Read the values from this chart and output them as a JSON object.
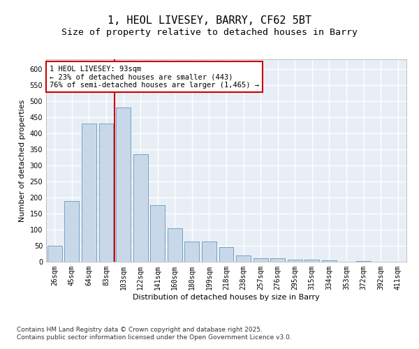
{
  "title_line1": "1, HEOL LIVESEY, BARRY, CF62 5BT",
  "title_line2": "Size of property relative to detached houses in Barry",
  "xlabel": "Distribution of detached houses by size in Barry",
  "ylabel": "Number of detached properties",
  "categories": [
    "26sqm",
    "45sqm",
    "64sqm",
    "83sqm",
    "103sqm",
    "122sqm",
    "141sqm",
    "160sqm",
    "180sqm",
    "199sqm",
    "218sqm",
    "238sqm",
    "257sqm",
    "276sqm",
    "295sqm",
    "315sqm",
    "334sqm",
    "353sqm",
    "372sqm",
    "392sqm",
    "411sqm"
  ],
  "values": [
    50,
    190,
    430,
    430,
    480,
    335,
    177,
    105,
    62,
    62,
    45,
    20,
    10,
    10,
    7,
    7,
    4,
    1,
    2,
    1,
    1
  ],
  "bar_color": "#c8d8e8",
  "bar_edgecolor": "#6699bb",
  "background_color": "#e8eef5",
  "grid_color": "#ffffff",
  "vline_color": "#cc0000",
  "annotation_text": "1 HEOL LIVESEY: 93sqm\n← 23% of detached houses are smaller (443)\n76% of semi-detached houses are larger (1,465) →",
  "annotation_box_edgecolor": "#cc0000",
  "ylim": [
    0,
    630
  ],
  "yticks": [
    0,
    50,
    100,
    150,
    200,
    250,
    300,
    350,
    400,
    450,
    500,
    550,
    600
  ],
  "footer_text": "Contains HM Land Registry data © Crown copyright and database right 2025.\nContains public sector information licensed under the Open Government Licence v3.0.",
  "title_fontsize": 11,
  "subtitle_fontsize": 9.5,
  "axis_label_fontsize": 8,
  "tick_fontsize": 7,
  "annotation_fontsize": 7.5,
  "footer_fontsize": 6.5
}
